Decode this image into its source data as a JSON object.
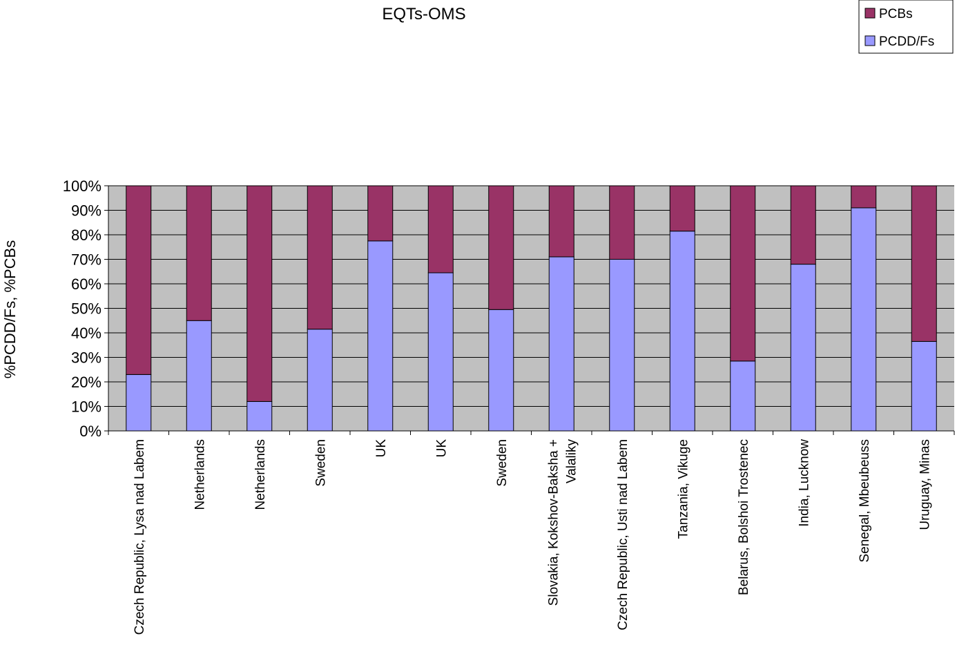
{
  "chart_data": {
    "type": "bar",
    "stacked": true,
    "title": "EQTs-OMS",
    "ylabel": "%PCDD/Fs, %PCBs",
    "xlabel": "",
    "ylim": [
      0,
      100
    ],
    "yticks": [
      "0%",
      "10%",
      "20%",
      "30%",
      "40%",
      "50%",
      "60%",
      "70%",
      "80%",
      "90%",
      "100%"
    ],
    "grid": true,
    "legend": {
      "position": "top-right"
    },
    "categories": [
      [
        "Czech Republic, Lysa nad Labem"
      ],
      [
        "Netherlands"
      ],
      [
        "Netherlands"
      ],
      [
        "Sweden"
      ],
      [
        "UK"
      ],
      [
        "UK"
      ],
      [
        "Sweden"
      ],
      [
        "Slovakia, Kokshov-Baksha +",
        "Valaliky"
      ],
      [
        "Czech Republic, Usti nad Labem"
      ],
      [
        "Tanzania, Vikuge"
      ],
      [
        "Belarus, Bolshoi Trostenec"
      ],
      [
        "India, Lucknow"
      ],
      [
        "Senegal, Mbeubeuss"
      ],
      [
        "Uruguay, Minas"
      ]
    ],
    "series": [
      {
        "name": "PCDD/Fs",
        "color": "#9999ff",
        "values": [
          23,
          45,
          12,
          41.5,
          77.5,
          64.5,
          49.5,
          71,
          70,
          81.5,
          28.5,
          68,
          91,
          36.5
        ]
      },
      {
        "name": "PCBs",
        "color": "#993366",
        "values": [
          77,
          55,
          88,
          58.5,
          22.5,
          35.5,
          50.5,
          29,
          30,
          18.5,
          71.5,
          32,
          9,
          63.5
        ]
      }
    ],
    "plot_background": "#c0c0c0"
  }
}
